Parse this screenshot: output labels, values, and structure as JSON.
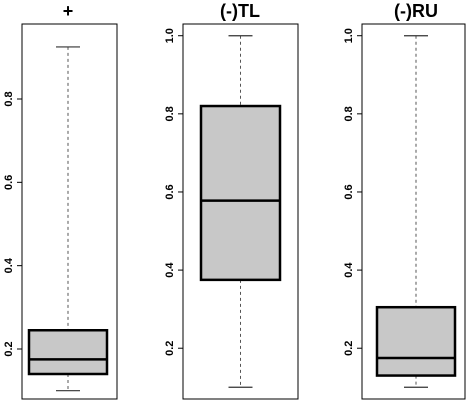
{
  "chart_data": [
    {
      "type": "box",
      "title": "+",
      "xlabel": "",
      "ylabel": "",
      "ylim": [
        0.08,
        0.98
      ],
      "yticks": [
        0.2,
        0.4,
        0.6,
        0.8
      ],
      "yticklabels": [
        "0.2",
        "0.4",
        "0.6",
        "0.8"
      ],
      "box": {
        "whisker_low": 0.1,
        "q1": 0.14,
        "median": 0.175,
        "q3": 0.245,
        "whisker_high": 0.925
      },
      "fill_color": "#c8c8c8",
      "outline_color": "#000000",
      "whisker_color": "#555555"
    },
    {
      "type": "box",
      "title": "(-)TL",
      "xlabel": "",
      "ylabel": "",
      "ylim": [
        0.07,
        1.03
      ],
      "yticks": [
        0.2,
        0.4,
        0.6,
        0.8,
        1.0
      ],
      "yticklabels": [
        "0.2",
        "0.4",
        "0.6",
        "0.8",
        "1.0"
      ],
      "box": {
        "whisker_low": 0.1,
        "q1": 0.375,
        "median": 0.578,
        "q3": 0.82,
        "whisker_high": 1.0
      },
      "fill_color": "#c8c8c8",
      "outline_color": "#000000",
      "whisker_color": "#555555"
    },
    {
      "type": "box",
      "title": "(-)RU",
      "xlabel": "",
      "ylabel": "",
      "ylim": [
        0.07,
        1.03
      ],
      "yticks": [
        0.2,
        0.4,
        0.6,
        0.8,
        1.0
      ],
      "yticklabels": [
        "0.2",
        "0.4",
        "0.6",
        "0.8",
        "1.0"
      ],
      "box": {
        "whisker_low": 0.1,
        "q1": 0.13,
        "median": 0.175,
        "q3": 0.305,
        "whisker_high": 1.0
      },
      "fill_color": "#c8c8c8",
      "outline_color": "#000000",
      "whisker_color": "#555555"
    }
  ]
}
